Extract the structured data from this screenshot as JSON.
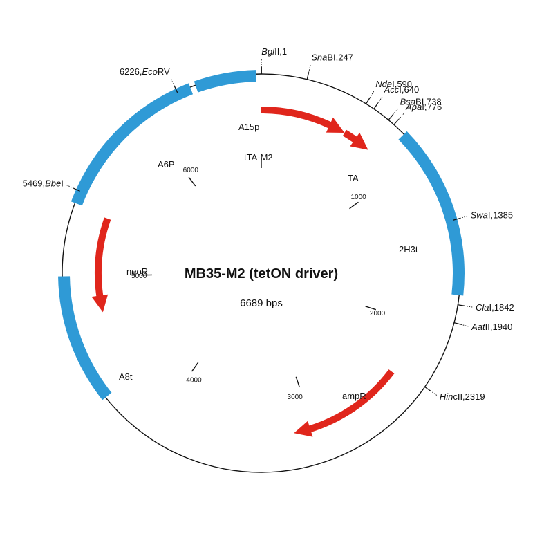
{
  "plasmid": {
    "name": "MB35-M2 (tetON driver)",
    "size_label": "6689 bps",
    "length_bp": 6689
  },
  "colors": {
    "backbone": "#111111",
    "feature_box": "#2f9ad6",
    "arrow": "#e0261c"
  },
  "restriction_sites": [
    {
      "italic": "Bgl",
      "rest": "II,1",
      "pos": 1
    },
    {
      "italic": "Sna",
      "rest": "BI,247",
      "pos": 247
    },
    {
      "italic": "Nde",
      "rest": "I,590",
      "pos": 590
    },
    {
      "italic": "Acc",
      "rest": "I,640",
      "pos": 640
    },
    {
      "italic": "Bsa",
      "rest": "BI,738",
      "pos": 738
    },
    {
      "italic": "Apa",
      "rest": "I,776",
      "pos": 776
    },
    {
      "italic": "Swa",
      "rest": "I,1385",
      "pos": 1385
    },
    {
      "italic": "Cla",
      "rest": "I,1842",
      "pos": 1842
    },
    {
      "italic": "Aat",
      "rest": "II,1940",
      "pos": 1940
    },
    {
      "italic": "Hin",
      "rest": "cII,2319",
      "pos": 2319
    },
    {
      "italic": "Bbe",
      "rest": "I",
      "prefix": "5469,",
      "pos": 5469
    },
    {
      "italic": "Eco",
      "rest": "RV",
      "prefix": "6226,",
      "pos": 6226
    }
  ],
  "feature_boxes": [
    {
      "name": "2H3t",
      "start": 850,
      "end": 1790
    },
    {
      "name": "A8t",
      "start": 4300,
      "end": 5000
    },
    {
      "name": "A6P",
      "start": 5400,
      "end": 6300
    },
    {
      "name": "",
      "start": 6330,
      "end": 6660
    }
  ],
  "arrows": [
    {
      "name": "tTA-M2",
      "start": 0,
      "end": 570
    },
    {
      "name": "TA",
      "start": 570,
      "end": 760
    },
    {
      "name": "ampR",
      "start": 2360,
      "end": 3130
    },
    {
      "name": "neoR",
      "start": 5380,
      "end": 4760
    }
  ],
  "feature_labels": [
    {
      "id": "a15p",
      "text": "A15p"
    },
    {
      "id": "tta-m2",
      "text": "tTA-M2"
    },
    {
      "id": "ta",
      "text": "TA"
    },
    {
      "id": "2h3t",
      "text": "2H3t"
    },
    {
      "id": "ampr",
      "text": "ampR"
    },
    {
      "id": "a8t",
      "text": "A8t"
    },
    {
      "id": "neor",
      "text": "neoR"
    },
    {
      "id": "a6p",
      "text": "A6P"
    }
  ],
  "scale_ticks": [
    {
      "label": "1000",
      "pos": 1000
    },
    {
      "label": "2000",
      "pos": 2000
    },
    {
      "label": "3000",
      "pos": 3000
    },
    {
      "label": "4000",
      "pos": 4000
    },
    {
      "label": "5000",
      "pos": 5000
    },
    {
      "label": "6000",
      "pos": 6000
    }
  ]
}
